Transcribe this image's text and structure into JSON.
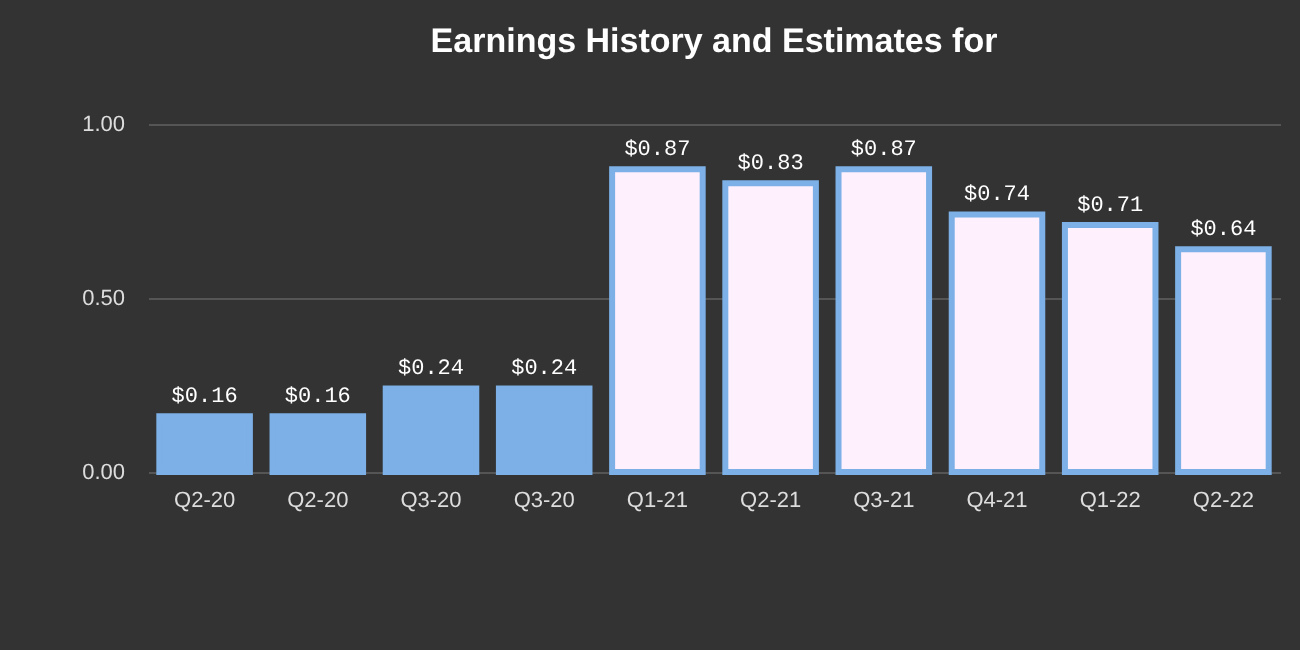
{
  "chart_data": {
    "type": "bar",
    "title": "Earnings History and Estimates for",
    "categories": [
      "Q2-20",
      "Q2-20",
      "Q3-20",
      "Q3-20",
      "Q1-21",
      "Q2-21",
      "Q3-21",
      "Q4-21",
      "Q1-22",
      "Q2-22"
    ],
    "values": [
      0.16,
      0.16,
      0.24,
      0.24,
      0.87,
      0.83,
      0.87,
      0.74,
      0.71,
      0.64
    ],
    "value_labels": [
      "$0.16",
      "$0.16",
      "$0.24",
      "$0.24",
      "$0.87",
      "$0.83",
      "$0.87",
      "$0.74",
      "$0.71",
      "$0.64"
    ],
    "colors": [
      "#7cb0e6",
      "#7cb0e6",
      "#7cb0e6",
      "#7cb0e6",
      "#fff0fd",
      "#fff0fd",
      "#fff0fd",
      "#fff0fd",
      "#fff0fd",
      "#fff0fd"
    ],
    "ylim": [
      0,
      1
    ],
    "yticks": [
      {
        "value": 0,
        "label": "0.00"
      },
      {
        "value": 0.5,
        "label": "0.50"
      },
      {
        "value": 1,
        "label": "1.00"
      }
    ],
    "grid": "y"
  }
}
